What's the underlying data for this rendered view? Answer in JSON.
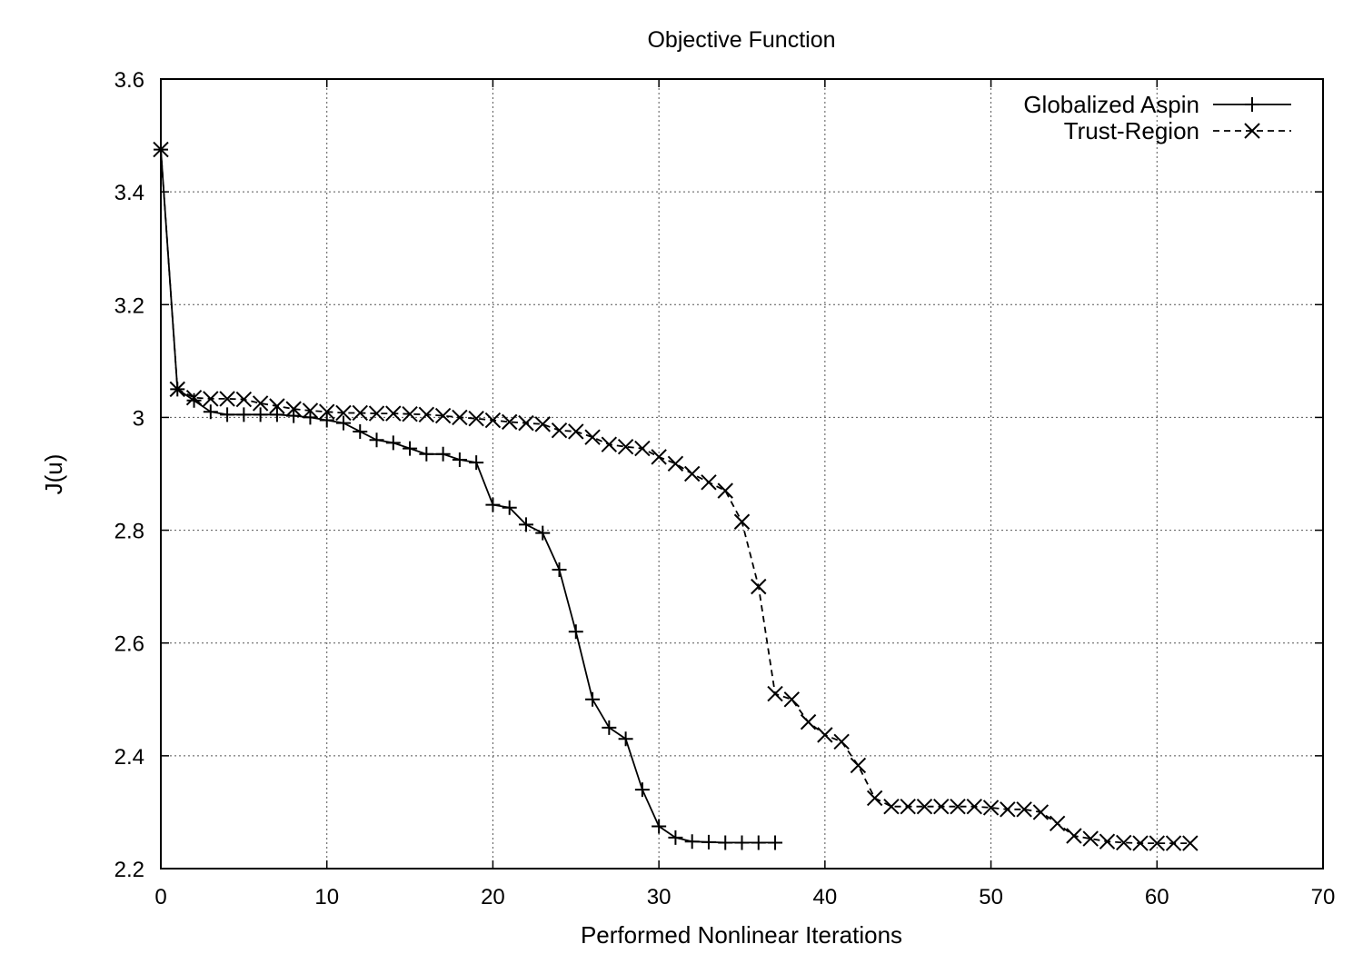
{
  "chart_data": {
    "type": "line",
    "title": "Objective Function",
    "xlabel": "Performed Nonlinear Iterations",
    "ylabel": "J(u)",
    "xlim": [
      0,
      70
    ],
    "ylim": [
      2.2,
      3.6
    ],
    "xticks": [
      "0",
      "10",
      "20",
      "30",
      "40",
      "50",
      "60",
      "70"
    ],
    "yticks": [
      "2.2",
      "2.4",
      "2.6",
      "2.8",
      "3",
      "3.2",
      "3.4",
      "3.6"
    ],
    "grid": true,
    "legend_position": "top-right",
    "series": [
      {
        "name": "Globalized Aspin",
        "marker": "plus",
        "line_style": "solid",
        "color": "#000000",
        "x": [
          0,
          1,
          2,
          3,
          4,
          5,
          6,
          7,
          8,
          9,
          10,
          11,
          12,
          13,
          14,
          15,
          16,
          17,
          18,
          19,
          20,
          21,
          22,
          23,
          24,
          25,
          26,
          27,
          28,
          29,
          30,
          31,
          32,
          33,
          34,
          35,
          36,
          37
        ],
        "y": [
          3.475,
          3.05,
          3.03,
          3.01,
          3.005,
          3.005,
          3.005,
          3.005,
          3.003,
          3.0,
          2.995,
          2.99,
          2.975,
          2.96,
          2.955,
          2.945,
          2.935,
          2.935,
          2.925,
          2.92,
          2.845,
          2.84,
          2.81,
          2.795,
          2.73,
          2.62,
          2.5,
          2.45,
          2.43,
          2.34,
          2.275,
          2.255,
          2.248,
          2.247,
          2.246,
          2.246,
          2.246,
          2.246
        ]
      },
      {
        "name": "Trust-Region",
        "marker": "cross",
        "line_style": "dashed",
        "color": "#000000",
        "x": [
          0,
          1,
          2,
          3,
          4,
          5,
          6,
          7,
          8,
          9,
          10,
          11,
          12,
          13,
          14,
          15,
          16,
          17,
          18,
          19,
          20,
          21,
          22,
          23,
          24,
          25,
          26,
          27,
          28,
          29,
          30,
          31,
          32,
          33,
          34,
          35,
          36,
          37,
          38,
          39,
          40,
          41,
          42,
          43,
          44,
          45,
          46,
          47,
          48,
          49,
          50,
          51,
          52,
          53,
          54,
          55,
          56,
          57,
          58,
          59,
          60,
          61,
          62
        ],
        "y": [
          3.475,
          3.05,
          3.035,
          3.033,
          3.033,
          3.032,
          3.025,
          3.02,
          3.015,
          3.012,
          3.01,
          3.008,
          3.008,
          3.007,
          3.007,
          3.006,
          3.005,
          3.003,
          3.0,
          2.998,
          2.995,
          2.992,
          2.99,
          2.988,
          2.977,
          2.975,
          2.965,
          2.952,
          2.948,
          2.945,
          2.93,
          2.918,
          2.9,
          2.885,
          2.87,
          2.815,
          2.7,
          2.51,
          2.5,
          2.46,
          2.437,
          2.425,
          2.383,
          2.325,
          2.31,
          2.31,
          2.31,
          2.31,
          2.31,
          2.31,
          2.308,
          2.305,
          2.305,
          2.3,
          2.28,
          2.258,
          2.253,
          2.248,
          2.246,
          2.245,
          2.245,
          2.245,
          2.245
        ]
      }
    ]
  }
}
